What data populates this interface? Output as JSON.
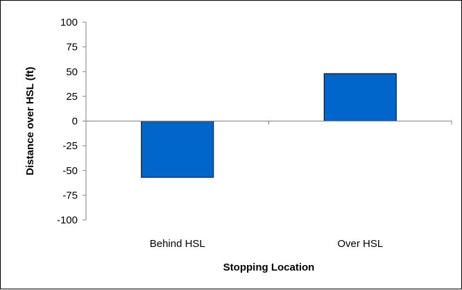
{
  "chart_data": {
    "type": "bar",
    "title": "",
    "xlabel": "Stopping Location",
    "ylabel": "Distance  over HSL  (ft)",
    "categories": [
      "Behind HSL",
      "Over HSL"
    ],
    "values": [
      -57,
      48
    ],
    "ylim": [
      -100,
      100
    ],
    "yticks": [
      100,
      75,
      50,
      25,
      0,
      -25,
      -50,
      -75,
      -100
    ],
    "ytick_labels": [
      "100",
      "75",
      "50",
      "25",
      "0",
      "-25",
      "-50",
      "-75",
      "-100"
    ],
    "grid": false,
    "legend": "none",
    "bar_color": "#0066CC",
    "bar_edge_color": "#000000"
  }
}
